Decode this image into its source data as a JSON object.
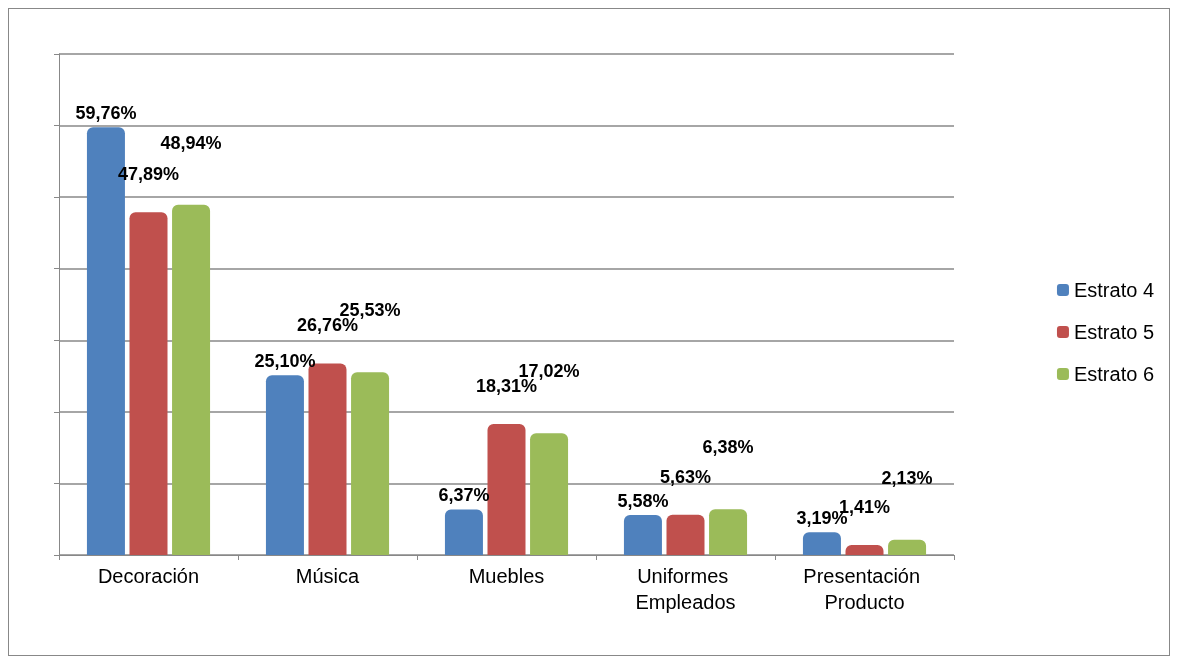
{
  "chart_data": {
    "type": "bar",
    "categories": [
      "Decoración",
      "Música",
      "Muebles",
      "Uniformes Empleados",
      "Presentación Producto"
    ],
    "series": [
      {
        "name": "Estrato 4",
        "color": "#4f81bd",
        "values": [
          59.76,
          25.1,
          6.37,
          5.58,
          3.19
        ],
        "value_labels": [
          "59,76%",
          "25,10%",
          "6,37%",
          "5,58%",
          "3,19%"
        ]
      },
      {
        "name": "Estrato 5",
        "color": "#c0504d",
        "values": [
          47.89,
          26.76,
          18.31,
          5.63,
          1.41
        ],
        "value_labels": [
          "47,89%",
          "26,76%",
          "18,31%",
          "5,63%",
          "1,41%"
        ]
      },
      {
        "name": "Estrato 6",
        "color": "#9bbb59",
        "values": [
          48.94,
          25.53,
          17.02,
          6.38,
          2.13
        ],
        "value_labels": [
          "48,94%",
          "25,53%",
          "17,02%",
          "6,38%",
          "2,13%"
        ]
      }
    ],
    "ylim": [
      0,
      70
    ],
    "yticks": [
      {
        "value": 0,
        "label": null
      },
      {
        "value": 10,
        "label": null
      },
      {
        "value": 20,
        "label": null
      },
      {
        "value": 30,
        "label": null
      },
      {
        "value": 40,
        "label": null
      },
      {
        "value": 50,
        "label": null
      },
      {
        "value": 60,
        "label": null
      },
      {
        "value": 70,
        "label": null
      }
    ],
    "grid": "y",
    "legend": "right",
    "tick_labels": "x"
  }
}
